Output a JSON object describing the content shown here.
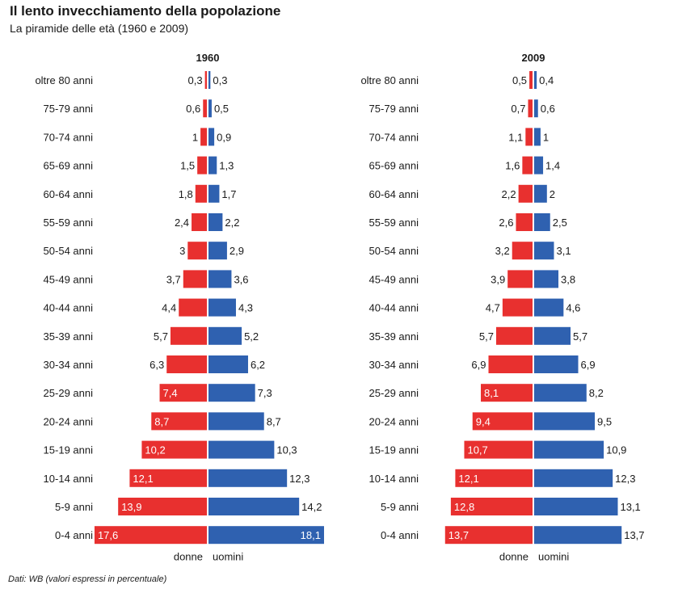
{
  "header": {
    "title": "Il lento invecchiamento della popolazione",
    "subtitle": "La piramide delle età (1960 e 2009)"
  },
  "footer": {
    "source": "Dati: WB (valori espressi in percentuale)"
  },
  "colors": {
    "donne": "#e8302f",
    "uomini": "#2f61b0"
  },
  "chart_data": [
    {
      "type": "bar",
      "orientation": "horizontal",
      "layout": "population-pyramid",
      "title": "1960",
      "categories": [
        "oltre 80 anni",
        "75-79 anni",
        "70-74 anni",
        "65-69 anni",
        "60-64 anni",
        "55-59 anni",
        "50-54 anni",
        "45-49 anni",
        "40-44 anni",
        "35-39 anni",
        "30-34 anni",
        "25-29 anni",
        "20-24 anni",
        "15-19 anni",
        "10-14 anni",
        "5-9 anni",
        "0-4 anni"
      ],
      "series": [
        {
          "name": "donne",
          "values": [
            "0,3",
            "0,6",
            "1",
            "1,5",
            "1,8",
            "2,4",
            "3",
            "3,7",
            "4,4",
            "5,7",
            "6,3",
            "7,4",
            "8,7",
            "10,2",
            "12,1",
            "13,9",
            "17,6"
          ]
        },
        {
          "name": "uomini",
          "values": [
            "0,3",
            "0,5",
            "0,9",
            "1,3",
            "1,7",
            "2,2",
            "2,9",
            "3,6",
            "4,3",
            "5,2",
            "6,2",
            "7,3",
            "8,7",
            "10,3",
            "12,3",
            "14,2",
            "18,1"
          ]
        }
      ]
    },
    {
      "type": "bar",
      "orientation": "horizontal",
      "layout": "population-pyramid",
      "title": "2009",
      "categories": [
        "oltre 80 anni",
        "75-79 anni",
        "70-74 anni",
        "65-69 anni",
        "60-64 anni",
        "55-59 anni",
        "50-54 anni",
        "45-49 anni",
        "40-44 anni",
        "35-39 anni",
        "30-34 anni",
        "25-29 anni",
        "20-24 anni",
        "15-19 anni",
        "10-14 anni",
        "5-9 anni",
        "0-4 anni"
      ],
      "series": [
        {
          "name": "donne",
          "values": [
            "0,5",
            "0,7",
            "1,1",
            "1,6",
            "2,2",
            "2,6",
            "3,2",
            "3,9",
            "4,7",
            "5,7",
            "6,9",
            "8,1",
            "9,4",
            "10,7",
            "12,1",
            "12,8",
            "13,7"
          ]
        },
        {
          "name": "uomini",
          "values": [
            "0,4",
            "0,6",
            "1",
            "1,4",
            "2",
            "2,5",
            "3,1",
            "3,8",
            "4,6",
            "5,7",
            "6,9",
            "8,2",
            "9,5",
            "10,9",
            "12,3",
            "13,1",
            "13,7"
          ]
        }
      ]
    }
  ]
}
